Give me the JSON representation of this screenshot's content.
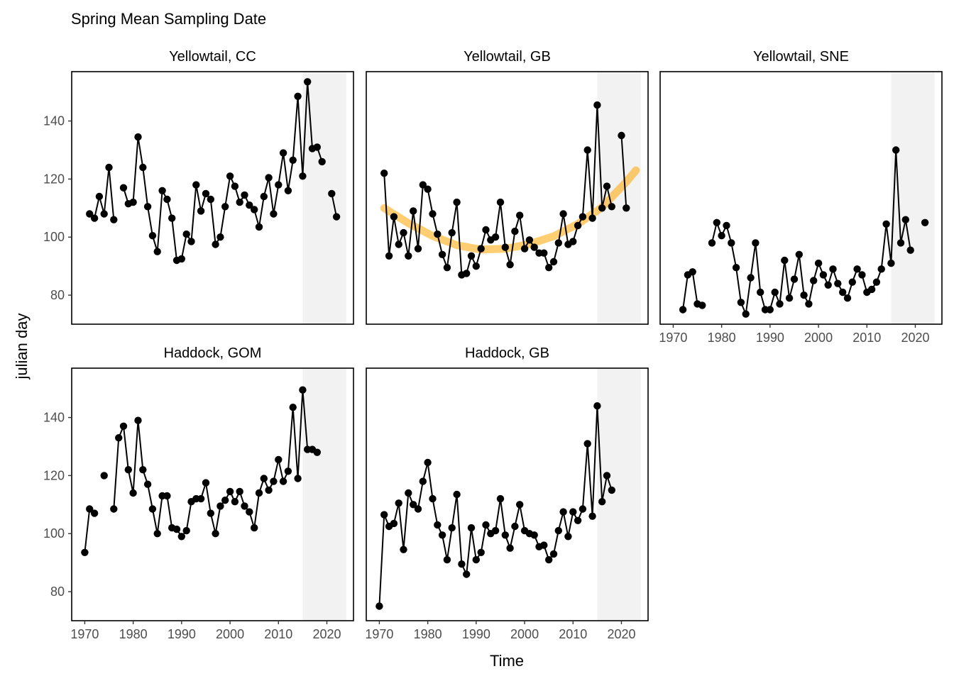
{
  "chart_data": {
    "type": "line",
    "title": "Spring Mean Sampling Date",
    "xlabel": "Time",
    "ylabel": "julian day",
    "xlim": [
      1967.3,
      2025.5
    ],
    "ylim": [
      70,
      157
    ],
    "x_ticks": [
      "1970",
      "1980",
      "1990",
      "2000",
      "2010",
      "2020"
    ],
    "y_ticks": [
      "80",
      "100",
      "120",
      "140"
    ],
    "shaded_period": [
      2015,
      2024
    ],
    "colors": {
      "series": "#000000",
      "shade": "#f2f2f2",
      "trend": "#ffa500"
    },
    "panels": [
      {
        "name": "Yellowtail, CC",
        "x": [
          1971,
          1972,
          1973,
          1974,
          1975,
          1976,
          1977,
          1978,
          1979,
          1980,
          1981,
          1982,
          1983,
          1984,
          1985,
          1986,
          1987,
          1988,
          1989,
          1990,
          1991,
          1992,
          1993,
          1994,
          1995,
          1996,
          1997,
          1998,
          1999,
          2000,
          2001,
          2002,
          2003,
          2004,
          2005,
          2006,
          2007,
          2008,
          2009,
          2010,
          2011,
          2012,
          2013,
          2014,
          2015,
          2016,
          2017,
          2018,
          2019,
          2020,
          2021,
          2022
        ],
        "values": [
          108,
          106.5,
          114,
          108,
          124,
          106,
          null,
          117,
          111.5,
          112,
          134.5,
          124,
          110.5,
          100.5,
          95,
          116,
          113,
          106.5,
          92,
          92.5,
          101,
          98.5,
          118,
          109,
          115,
          113,
          97.5,
          100,
          110.5,
          121,
          117.5,
          112,
          114.5,
          111,
          109.5,
          103.5,
          114,
          120.5,
          108,
          118,
          129,
          116,
          126.5,
          148.5,
          121,
          153.5,
          130.5,
          131,
          126,
          null,
          115,
          107
        ]
      },
      {
        "name": "Yellowtail, GB",
        "x": [
          1971,
          1972,
          1973,
          1974,
          1975,
          1976,
          1977,
          1978,
          1979,
          1980,
          1981,
          1982,
          1983,
          1984,
          1985,
          1986,
          1987,
          1988,
          1989,
          1990,
          1991,
          1992,
          1993,
          1994,
          1995,
          1996,
          1997,
          1998,
          1999,
          2000,
          2001,
          2002,
          2003,
          2004,
          2005,
          2006,
          2007,
          2008,
          2009,
          2010,
          2011,
          2012,
          2013,
          2014,
          2015,
          2016,
          2017,
          2018,
          2019,
          2020,
          2021,
          2022
        ],
        "values": [
          122,
          93.5,
          107,
          97.5,
          101.5,
          93.5,
          109,
          96,
          118,
          116.5,
          108,
          101,
          94,
          89.5,
          101.5,
          112,
          87,
          87.5,
          93.5,
          90,
          96,
          102.5,
          99,
          100,
          112,
          96.5,
          90.5,
          102,
          107.5,
          96,
          99,
          96.5,
          94.5,
          94.5,
          89.5,
          91.5,
          98,
          108,
          97.5,
          98.5,
          104,
          107,
          130,
          106.5,
          145.5,
          110,
          117.5,
          110.5,
          null,
          135,
          110,
          null
        ],
        "trend": {
          "x": [
            1971,
            1976,
            1981,
            1986,
            1991,
            1996,
            2001,
            2006,
            2011,
            2016,
            2021,
            2023
          ],
          "values": [
            110,
            104.8,
            100.4,
            97.2,
            95.7,
            96,
            97.6,
            100.3,
            104.5,
            110.3,
            119,
            123
          ]
        }
      },
      {
        "name": "Yellowtail, SNE",
        "x": [
          1972,
          1973,
          1974,
          1975,
          1976,
          1977,
          1978,
          1979,
          1980,
          1981,
          1982,
          1983,
          1984,
          1985,
          1986,
          1987,
          1988,
          1989,
          1990,
          1991,
          1992,
          1993,
          1994,
          1995,
          1996,
          1997,
          1998,
          1999,
          2000,
          2001,
          2002,
          2003,
          2004,
          2005,
          2006,
          2007,
          2008,
          2009,
          2010,
          2011,
          2012,
          2013,
          2014,
          2015,
          2016,
          2017,
          2018,
          2019,
          2020,
          2021,
          2022
        ],
        "values": [
          75,
          87,
          88,
          77,
          76.5,
          null,
          98,
          105,
          100.5,
          104,
          98,
          89.5,
          77.5,
          73.5,
          86,
          98,
          81,
          75,
          75,
          81,
          77,
          92,
          79,
          85.5,
          94,
          80,
          77,
          85,
          91,
          87,
          83.5,
          89,
          84,
          81,
          79,
          84.5,
          89,
          87,
          81,
          82,
          84.5,
          89,
          104.5,
          91,
          130,
          98,
          106,
          95.5,
          null,
          null,
          105
        ]
      },
      {
        "name": "Haddock, GOM",
        "x": [
          1970,
          1971,
          1972,
          1973,
          1974,
          1975,
          1976,
          1977,
          1978,
          1979,
          1980,
          1981,
          1982,
          1983,
          1984,
          1985,
          1986,
          1987,
          1988,
          1989,
          1990,
          1991,
          1992,
          1993,
          1994,
          1995,
          1996,
          1997,
          1998,
          1999,
          2000,
          2001,
          2002,
          2003,
          2004,
          2005,
          2006,
          2007,
          2008,
          2009,
          2010,
          2011,
          2012,
          2013,
          2014,
          2015,
          2016,
          2017,
          2018,
          2019
        ],
        "values": [
          93.5,
          108.5,
          107,
          null,
          120,
          null,
          108.5,
          133,
          137,
          122,
          114,
          139,
          122,
          117,
          108.5,
          100,
          113,
          113,
          102,
          101.5,
          99,
          101,
          111,
          112,
          112,
          117.5,
          107,
          100,
          109.5,
          111.5,
          114.5,
          111,
          114.5,
          109.5,
          107.5,
          102,
          114,
          119,
          115,
          118,
          125.5,
          118,
          121.5,
          143.5,
          119,
          149.5,
          129,
          129,
          128,
          null
        ]
      },
      {
        "name": "Haddock, GB",
        "x": [
          1970,
          1971,
          1972,
          1973,
          1974,
          1975,
          1976,
          1977,
          1978,
          1979,
          1980,
          1981,
          1982,
          1983,
          1984,
          1985,
          1986,
          1987,
          1988,
          1989,
          1990,
          1991,
          1992,
          1993,
          1994,
          1995,
          1996,
          1997,
          1998,
          1999,
          2000,
          2001,
          2002,
          2003,
          2004,
          2005,
          2006,
          2007,
          2008,
          2009,
          2010,
          2011,
          2012,
          2013,
          2014,
          2015,
          2016,
          2017,
          2018,
          2019
        ],
        "values": [
          75,
          106.5,
          102.5,
          103.5,
          110.5,
          94.5,
          114,
          110,
          108.5,
          118,
          124.5,
          112,
          103,
          99.5,
          91,
          102,
          113.5,
          89.5,
          86,
          102,
          91,
          93.5,
          103,
          100,
          101,
          112,
          99.5,
          95,
          102.5,
          110,
          101,
          100,
          99.5,
          95.5,
          96,
          91,
          93,
          101,
          107.5,
          99,
          107.5,
          104.5,
          108.5,
          131,
          106,
          144,
          111,
          120,
          115,
          null
        ]
      }
    ]
  }
}
